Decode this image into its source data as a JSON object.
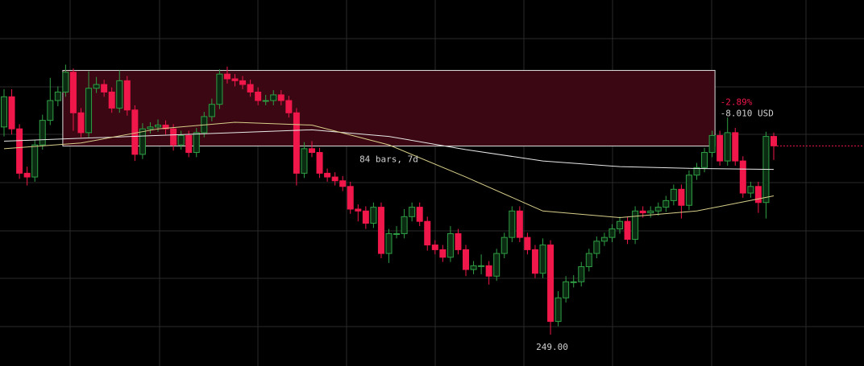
{
  "chart_data": {
    "type": "candlestick",
    "up_color": "#2f9e44",
    "down_color": "#f0174a",
    "ylim": [
      245.68,
      284.45
    ],
    "open": [
      271.0,
      274.2,
      270.8,
      266.1,
      265.7,
      269.1,
      271.7,
      273.8,
      274.7,
      276.8,
      272.5,
      270.4,
      275.1,
      275.5,
      274.7,
      273.0,
      275.9,
      272.8,
      268.1,
      270.8,
      271.0,
      271.2,
      270.8,
      269.1,
      270.1,
      268.3,
      270.4,
      272.1,
      273.4,
      276.6,
      276.1,
      275.9,
      275.5,
      274.7,
      273.8,
      273.8,
      274.4,
      273.8,
      272.5,
      266.1,
      268.7,
      268.3,
      266.1,
      265.7,
      265.3,
      264.7,
      262.3,
      262.1,
      260.8,
      262.5,
      257.6,
      259.7,
      259.7,
      261.5,
      262.5,
      261.0,
      258.5,
      258.0,
      257.2,
      259.7,
      258.0,
      255.9,
      256.3,
      256.3,
      255.2,
      257.6,
      259.3,
      262.1,
      259.3,
      258.0,
      255.5,
      258.5,
      250.4,
      252.9,
      254.6,
      254.6,
      256.2,
      257.6,
      258.9,
      259.3,
      260.2,
      261.0,
      259.1,
      262.1,
      261.9,
      262.1,
      262.5,
      263.2,
      264.4,
      262.7,
      265.9,
      266.7,
      268.3,
      270.1,
      267.4,
      270.4,
      267.4,
      264.0,
      264.7,
      263.0,
      270.0
    ],
    "high": [
      275.0,
      275.0,
      271.3,
      266.8,
      269.6,
      272.3,
      276.2,
      275.3,
      277.6,
      277.2,
      273.0,
      276.9,
      276.3,
      276.0,
      275.2,
      277.0,
      276.4,
      273.3,
      271.4,
      271.5,
      271.8,
      271.7,
      271.3,
      270.6,
      270.6,
      270.9,
      272.6,
      274.0,
      277.1,
      277.4,
      276.6,
      276.4,
      276.0,
      275.2,
      274.4,
      274.9,
      274.9,
      274.3,
      273.0,
      269.4,
      269.5,
      268.8,
      266.6,
      266.2,
      265.8,
      265.2,
      262.8,
      262.6,
      263.0,
      263.0,
      260.2,
      260.5,
      262.3,
      263.0,
      263.0,
      261.5,
      259.0,
      258.5,
      260.5,
      260.2,
      258.5,
      256.8,
      257.5,
      256.8,
      258.1,
      259.8,
      262.6,
      262.6,
      259.8,
      258.5,
      259.2,
      259.0,
      253.6,
      255.2,
      255.3,
      256.7,
      258.1,
      259.4,
      259.8,
      260.7,
      261.5,
      261.5,
      262.6,
      262.6,
      262.6,
      263.0,
      263.7,
      264.9,
      264.9,
      266.4,
      267.2,
      268.8,
      270.6,
      270.6,
      272.0,
      270.9,
      267.9,
      265.2,
      265.2,
      270.5,
      270.4
    ],
    "low": [
      270.0,
      270.2,
      265.5,
      264.8,
      265.2,
      268.6,
      271.2,
      273.2,
      274.2,
      270.6,
      269.9,
      269.9,
      274.6,
      274.2,
      272.5,
      272.5,
      272.2,
      267.4,
      267.6,
      270.3,
      270.5,
      270.2,
      268.5,
      268.6,
      267.8,
      267.8,
      269.9,
      271.6,
      272.9,
      275.6,
      275.3,
      275.0,
      274.2,
      273.3,
      273.3,
      273.3,
      273.3,
      272.0,
      264.8,
      265.6,
      267.8,
      265.6,
      265.2,
      264.8,
      264.2,
      261.8,
      261.0,
      260.2,
      260.3,
      257.1,
      256.6,
      259.2,
      259.2,
      261.0,
      260.5,
      257.9,
      257.5,
      256.7,
      256.7,
      257.5,
      255.2,
      255.4,
      255.4,
      254.3,
      254.7,
      257.1,
      258.8,
      258.8,
      257.5,
      255.0,
      255.0,
      249.0,
      249.9,
      252.4,
      254.0,
      254.1,
      255.7,
      257.1,
      258.4,
      258.8,
      259.7,
      258.6,
      258.6,
      261.4,
      261.4,
      261.6,
      262.0,
      262.7,
      261.3,
      262.2,
      265.4,
      266.2,
      267.8,
      266.9,
      266.9,
      266.9,
      263.5,
      263.5,
      261.9,
      261.3,
      267.5
    ],
    "close": [
      274.2,
      270.8,
      266.1,
      265.7,
      269.1,
      271.7,
      273.8,
      274.7,
      276.8,
      272.5,
      270.4,
      275.1,
      275.5,
      274.7,
      273.0,
      275.9,
      272.8,
      268.1,
      270.8,
      271.0,
      271.2,
      270.8,
      269.1,
      270.1,
      268.3,
      270.4,
      272.1,
      273.4,
      276.6,
      276.1,
      275.9,
      275.5,
      274.7,
      273.8,
      273.8,
      274.4,
      273.8,
      272.5,
      266.1,
      268.7,
      268.3,
      266.1,
      265.7,
      265.3,
      264.7,
      262.3,
      262.1,
      260.8,
      262.5,
      257.6,
      259.7,
      259.7,
      261.5,
      262.5,
      261.0,
      258.5,
      258.0,
      257.2,
      259.7,
      258.0,
      255.9,
      256.3,
      256.3,
      255.2,
      257.6,
      259.3,
      262.1,
      259.3,
      258.0,
      255.5,
      258.5,
      250.4,
      252.9,
      254.6,
      254.6,
      256.2,
      257.6,
      258.9,
      259.3,
      260.2,
      261.0,
      259.1,
      262.1,
      261.9,
      262.1,
      262.5,
      263.2,
      264.4,
      262.7,
      265.9,
      266.7,
      268.3,
      270.1,
      267.4,
      270.4,
      267.4,
      264.0,
      264.7,
      263.0,
      270.0,
      269.0
    ],
    "overlays": [
      {
        "color": "#e8e8e8",
        "x": [
          0,
          10,
          20,
          30,
          40,
          50,
          60,
          70,
          80,
          90,
          100
        ],
        "values": [
          269.5,
          269.8,
          270.1,
          270.4,
          270.7,
          270.0,
          268.6,
          267.4,
          266.8,
          266.6,
          266.5
        ]
      },
      {
        "color": "#d8cf8a",
        "x": [
          0,
          10,
          20,
          30,
          40,
          50,
          60,
          70,
          80,
          90,
          100
        ],
        "values": [
          268.7,
          269.3,
          270.8,
          271.5,
          271.2,
          269.1,
          265.7,
          262.1,
          261.4,
          262.1,
          263.7
        ]
      }
    ],
    "measure": {
      "from_index": 8,
      "to_index": 92,
      "from_price": 276.99,
      "to_price": 268.98,
      "fill": "#3a0712",
      "bars_label": "84 bars, 7d",
      "percent_label": "-2.89%",
      "change_label": "-8.010 USD"
    },
    "low_label": {
      "index": 71,
      "text": "249.00"
    }
  }
}
